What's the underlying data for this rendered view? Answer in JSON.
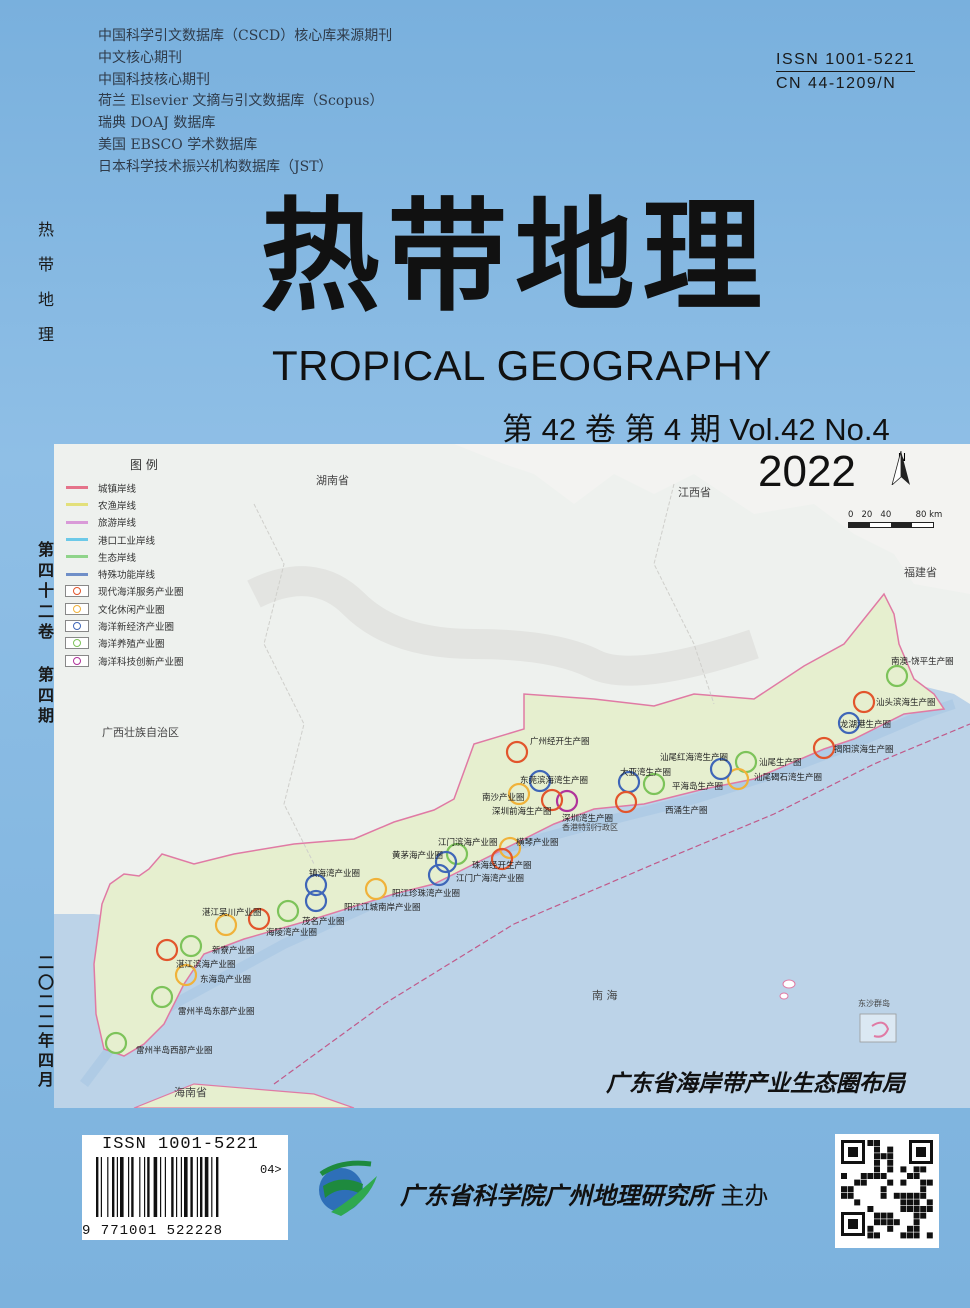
{
  "index_list": [
    "中国科学引文数据库（CSCD）核心库来源期刊",
    "中文核心期刊",
    "中国科技核心期刊",
    "荷兰 Elsevier 文摘与引文数据库（Scopus）",
    "瑞典 DOAJ 数据库",
    "美国 EBSCO 学术数据库",
    "日本科学技术振兴机构数据库（JST）"
  ],
  "issn": "ISSN 1001-5221",
  "cn": "CN 44-1209/N",
  "spine_top": [
    "热",
    "带",
    "地",
    "理"
  ],
  "spine_mid": [
    "第",
    "四",
    "十",
    "二",
    "卷"
  ],
  "spine_mid2": [
    "第",
    "四",
    "期"
  ],
  "spine_bottom": [
    "二",
    "〇",
    "二",
    "二",
    "年",
    "四",
    "月"
  ],
  "title_cn": "热带地理",
  "title_en": "TROPICAL GEOGRAPHY",
  "volume": "第 42 卷  第 4 期  Vol.42  No.4",
  "year": "2022",
  "map": {
    "legend_title": "图 例",
    "legend": [
      {
        "label": "城镇岸线",
        "type": "line",
        "color": "#e5738a"
      },
      {
        "label": "农渔岸线",
        "type": "line",
        "color": "#e3e07a"
      },
      {
        "label": "旅游岸线",
        "type": "line",
        "color": "#d99ad8"
      },
      {
        "label": "港口工业岸线",
        "type": "line",
        "color": "#6cc9e8"
      },
      {
        "label": "生态岸线",
        "type": "line",
        "color": "#8fd48a"
      },
      {
        "label": "特殊功能岸线",
        "type": "line",
        "color": "#6f8fc8"
      },
      {
        "label": "现代海洋服务产业圈",
        "type": "circle",
        "color": "#e2552c"
      },
      {
        "label": "文化休闲产业圈",
        "type": "circle",
        "color": "#f0b23a"
      },
      {
        "label": "海洋新经济产业圈",
        "type": "circle",
        "color": "#3f66b8"
      },
      {
        "label": "海洋养殖产业圈",
        "type": "circle",
        "color": "#7dc35a"
      },
      {
        "label": "海洋科技创新产业圈",
        "type": "circle",
        "color": "#b0339a"
      }
    ],
    "provinces": {
      "hunan": "湖南省",
      "jiangxi": "江西省",
      "fujian": "福建省",
      "guangxi": "广西壮族自治区",
      "hainan": "海南省",
      "nanhai": "南 海",
      "dongsha": "东沙群岛",
      "hk": "香港特别行政区"
    },
    "scale_labels": "0   20   40         80 km",
    "north": "N",
    "circle_labels": [
      "南澳-饶平生产圈",
      "汕头滨海生产圈",
      "龙湖港生产圈",
      "揭阳滨海生产圈",
      "汕尾生产圈",
      "汕尾碣石湾生产圈",
      "汕尾红海湾生产圈",
      "大亚湾生产圈",
      "平海岛生产圈",
      "西涌生产圈",
      "深圳湾生产圈",
      "东莞滨海湾生产圈",
      "广州经开生产圈",
      "南沙产业圈",
      "深圳前海生产圈",
      "横琴产业圈",
      "江门滨海产业圈",
      "珠海经开生产圈",
      "黄茅海产业圈",
      "江门广海湾产业圈",
      "阳江珍珠湾产业圈",
      "镇海湾产业圈",
      "阳江江城南岸产业圈",
      "海陵湾产业圈",
      "茂名产业圈",
      "湛江吴川产业圈",
      "新寮产业圈",
      "湛江滨海产业圈",
      "东海岛产业圈",
      "雷州半岛东部产业圈",
      "雷州半岛西部产业圈"
    ],
    "caption": "广东省海岸带产业生态圈布局"
  },
  "barcode": {
    "issn": "ISSN 1001-5221",
    "suffix": "04>",
    "number": "9 771001 522228"
  },
  "sponsor": "广东省科学院广州地理研究所",
  "sponsor_suffix": "主办"
}
